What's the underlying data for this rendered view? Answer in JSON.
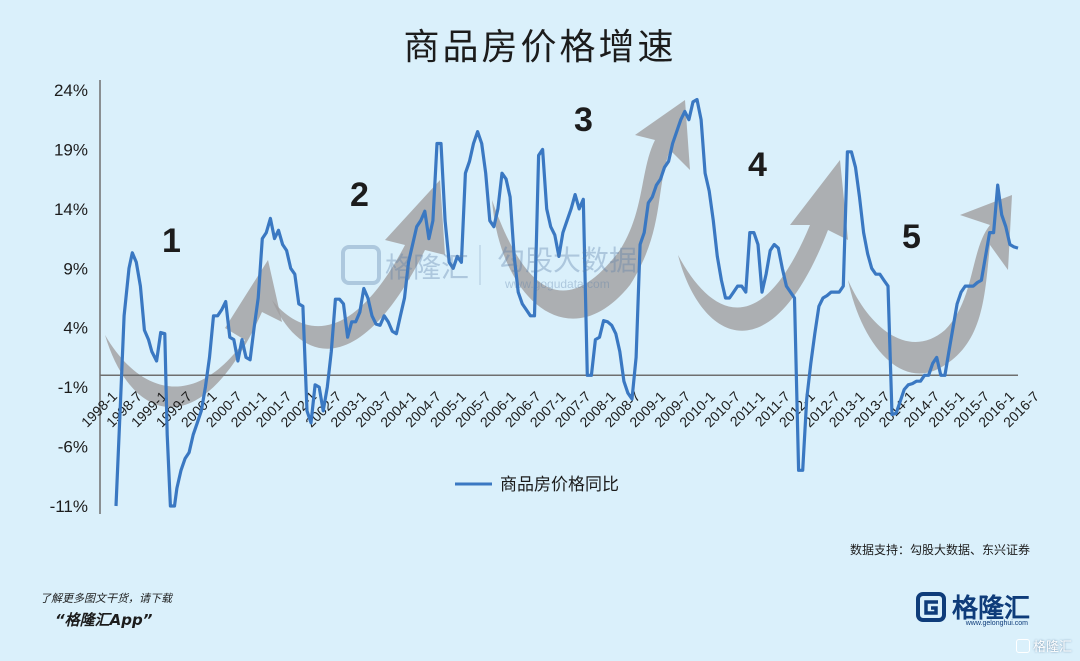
{
  "title": "商品房价格增速",
  "chart_data": {
    "type": "line",
    "title": "商品房价格增速",
    "ylim": [
      -11,
      24
    ],
    "yticks": [
      "24%",
      "19%",
      "14%",
      "9%",
      "4%",
      "-1%",
      "-6%",
      "-11%"
    ],
    "ytick_values": [
      24,
      19,
      14,
      9,
      4,
      -1,
      -6,
      -11
    ],
    "xticks": [
      "1998-1",
      "1998-7",
      "1999-1",
      "1999-7",
      "2000-1",
      "2000-7",
      "2001-1",
      "2001-7",
      "2002-1",
      "2002-7",
      "2003-1",
      "2003-7",
      "2004-1",
      "2004-7",
      "2005-1",
      "2005-7",
      "2006-1",
      "2006-7",
      "2007-1",
      "2007-7",
      "2008-1",
      "2008-7",
      "2009-1",
      "2009-7",
      "2010-1",
      "2010-7",
      "2011-1",
      "2011-7",
      "2012-1",
      "2012-7",
      "2013-1",
      "2013-7",
      "2014-1",
      "2014-7",
      "2015-1",
      "2015-7",
      "2016-1",
      "2016-7"
    ],
    "series": [
      {
        "name": "商品房价格同比",
        "color": "#3a78c2",
        "points": [
          [
            0,
            -11
          ],
          [
            0.5,
            -3
          ],
          [
            1,
            5
          ],
          [
            1.6,
            9
          ],
          [
            2,
            10.3
          ],
          [
            2.5,
            9.5
          ],
          [
            3,
            7.5
          ],
          [
            3.5,
            3.8
          ],
          [
            4,
            3
          ],
          [
            4.4,
            2
          ],
          [
            5,
            1.2
          ],
          [
            5.5,
            3.6
          ],
          [
            6,
            3.5
          ],
          [
            6.3,
            -5
          ],
          [
            6.7,
            -11
          ],
          [
            7.2,
            -11
          ],
          [
            7.5,
            -9.5
          ],
          [
            8,
            -8
          ],
          [
            8.5,
            -7
          ],
          [
            9,
            -6.5
          ],
          [
            9.5,
            -5
          ],
          [
            10,
            -4
          ],
          [
            10.5,
            -3
          ],
          [
            11,
            -1
          ],
          [
            11.5,
            1.5
          ],
          [
            12,
            5
          ],
          [
            12.5,
            5
          ],
          [
            13,
            5.5
          ],
          [
            13.5,
            6.2
          ],
          [
            14,
            3.2
          ],
          [
            14.5,
            3
          ],
          [
            15,
            1.2
          ],
          [
            15.5,
            3
          ],
          [
            16,
            1.5
          ],
          [
            16.5,
            1.3
          ],
          [
            17,
            4
          ],
          [
            17.5,
            6.5
          ],
          [
            18,
            11.5
          ],
          [
            18.5,
            12
          ],
          [
            19,
            13.2
          ],
          [
            19.5,
            11.5
          ],
          [
            20,
            12.2
          ],
          [
            20.5,
            11
          ],
          [
            21,
            10.5
          ],
          [
            21.5,
            9
          ],
          [
            22,
            8.5
          ],
          [
            22.5,
            6
          ],
          [
            23,
            5.8
          ],
          [
            23.5,
            -3
          ],
          [
            24,
            -4
          ],
          [
            24.5,
            -0.8
          ],
          [
            25,
            -1
          ],
          [
            25.5,
            -3
          ],
          [
            26,
            -1
          ],
          [
            26.5,
            2
          ],
          [
            27,
            6.4
          ],
          [
            27.5,
            6.4
          ],
          [
            28,
            6
          ],
          [
            28.5,
            3.2
          ],
          [
            29,
            4.5
          ],
          [
            29.5,
            4.5
          ],
          [
            30,
            5.3
          ],
          [
            30.5,
            7.3
          ],
          [
            31,
            6.5
          ],
          [
            31.5,
            5
          ],
          [
            32,
            4.3
          ],
          [
            32.5,
            4.2
          ],
          [
            33,
            5
          ],
          [
            33.5,
            4.5
          ],
          [
            34,
            3.7
          ],
          [
            34.5,
            3.5
          ],
          [
            35,
            5
          ],
          [
            35.5,
            6.5
          ],
          [
            36,
            9.5
          ],
          [
            36.5,
            11
          ],
          [
            37,
            12.5
          ],
          [
            37.5,
            13
          ],
          [
            38,
            13.8
          ],
          [
            38.5,
            11.5
          ],
          [
            39,
            13
          ],
          [
            39.5,
            19.5
          ],
          [
            40,
            19.5
          ],
          [
            40.5,
            13
          ],
          [
            41,
            9.5
          ],
          [
            41.5,
            9
          ],
          [
            42,
            10
          ],
          [
            42.5,
            9.5
          ],
          [
            43,
            17
          ],
          [
            43.5,
            18
          ],
          [
            44,
            19.5
          ],
          [
            44.5,
            20.5
          ],
          [
            45,
            19.5
          ],
          [
            45.5,
            17
          ],
          [
            46,
            13
          ],
          [
            46.5,
            12.5
          ],
          [
            47,
            14
          ],
          [
            47.5,
            17
          ],
          [
            48,
            16.5
          ],
          [
            48.5,
            15
          ],
          [
            49,
            10
          ],
          [
            49.5,
            7
          ],
          [
            50,
            6
          ],
          [
            50.5,
            5.5
          ],
          [
            51,
            5
          ],
          [
            51.5,
            5
          ],
          [
            52,
            18.5
          ],
          [
            52.5,
            19
          ],
          [
            53,
            14
          ],
          [
            53.5,
            12.5
          ],
          [
            54,
            11.8
          ],
          [
            54.5,
            10
          ],
          [
            55,
            12
          ],
          [
            55.5,
            13
          ],
          [
            56,
            14
          ],
          [
            56.5,
            15.2
          ],
          [
            57,
            14
          ],
          [
            57.5,
            14.8
          ],
          [
            58,
            0
          ],
          [
            58.5,
            0
          ],
          [
            59,
            3
          ],
          [
            59.5,
            3.2
          ],
          [
            60,
            4.6
          ],
          [
            60.5,
            4.5
          ],
          [
            61,
            4.2
          ],
          [
            61.5,
            3.5
          ],
          [
            62,
            2
          ],
          [
            62.5,
            -0.5
          ],
          [
            63,
            -1.5
          ],
          [
            63.5,
            -2
          ],
          [
            64,
            1.5
          ],
          [
            64.5,
            11
          ],
          [
            65,
            12
          ],
          [
            65.5,
            14.5
          ],
          [
            66,
            15
          ],
          [
            66.5,
            16
          ],
          [
            67,
            16.5
          ],
          [
            67.5,
            17.5
          ],
          [
            68,
            18
          ],
          [
            68.5,
            19.5
          ],
          [
            69,
            20.5
          ],
          [
            69.5,
            21.5
          ],
          [
            70,
            22.2
          ],
          [
            70.5,
            21.5
          ],
          [
            71,
            23
          ],
          [
            71.5,
            23.2
          ],
          [
            72,
            21.5
          ],
          [
            72.5,
            17
          ],
          [
            73,
            15.5
          ],
          [
            73.5,
            13
          ],
          [
            74,
            10
          ],
          [
            74.5,
            8
          ],
          [
            75,
            6.5
          ],
          [
            75.5,
            6.5
          ],
          [
            76,
            7
          ],
          [
            76.5,
            7.5
          ],
          [
            77,
            7.5
          ],
          [
            77.5,
            7
          ],
          [
            78,
            12
          ],
          [
            78.5,
            12
          ],
          [
            79,
            11
          ],
          [
            79.5,
            7
          ],
          [
            80,
            8.5
          ],
          [
            80.5,
            10.5
          ],
          [
            81,
            11
          ],
          [
            81.5,
            10.7
          ],
          [
            82,
            9
          ],
          [
            82.5,
            7.5
          ],
          [
            83,
            7
          ],
          [
            83.5,
            6.5
          ],
          [
            84,
            -8
          ],
          [
            84.5,
            -8
          ],
          [
            85,
            -2
          ],
          [
            85.5,
            1
          ],
          [
            86,
            3.5
          ],
          [
            86.5,
            5.8
          ],
          [
            87,
            6.5
          ],
          [
            87.5,
            6.7
          ],
          [
            88,
            7
          ],
          [
            88.5,
            7
          ],
          [
            89,
            7
          ],
          [
            89.5,
            7.5
          ],
          [
            90,
            18.8
          ],
          [
            90.5,
            18.8
          ],
          [
            91,
            17.5
          ],
          [
            91.5,
            15
          ],
          [
            92,
            12
          ],
          [
            92.5,
            10.2
          ],
          [
            93,
            9
          ],
          [
            93.5,
            8.5
          ],
          [
            94,
            8.5
          ],
          [
            94.5,
            8
          ],
          [
            95,
            7.5
          ],
          [
            95.5,
            -3.3
          ],
          [
            96,
            -3.2
          ],
          [
            96.5,
            -2.2
          ],
          [
            97,
            -1.2
          ],
          [
            97.5,
            -0.8
          ],
          [
            98,
            -0.7
          ],
          [
            98.5,
            -0.5
          ],
          [
            99,
            -0.5
          ],
          [
            99.5,
            0
          ],
          [
            100,
            0
          ],
          [
            100.5,
            1
          ],
          [
            101,
            1.5
          ],
          [
            101.5,
            0
          ],
          [
            102,
            0
          ],
          [
            102.5,
            2
          ],
          [
            103,
            4
          ],
          [
            103.5,
            6
          ],
          [
            104,
            7
          ],
          [
            104.5,
            7.5
          ],
          [
            105,
            7.5
          ],
          [
            105.5,
            7.5
          ],
          [
            106,
            7.8
          ],
          [
            106.5,
            8
          ],
          [
            107,
            10
          ],
          [
            107.5,
            12
          ],
          [
            108,
            12
          ],
          [
            108.5,
            16
          ],
          [
            109,
            13.5
          ],
          [
            109.5,
            12.5
          ],
          [
            110,
            11
          ],
          [
            110.5,
            10.8
          ],
          [
            111,
            10.7
          ]
        ]
      }
    ],
    "annotations": [
      "1",
      "2",
      "3",
      "4",
      "5"
    ],
    "grid": false,
    "baseline_at": 0,
    "legend_position": "bottom-center"
  },
  "watermark": {
    "left_text": "格隆汇",
    "right_text": "勾股大数据",
    "right_url": "www.gogudata.com"
  },
  "source_note": "数据支持：勾股大数据、东兴证券",
  "promo": {
    "line1": "了解更多图文干货，请下载",
    "line2": "“格隆汇App”"
  },
  "brand": {
    "name": "格隆汇",
    "url": "www.gelonghui.com"
  },
  "corner_watermark": "格隆汇"
}
